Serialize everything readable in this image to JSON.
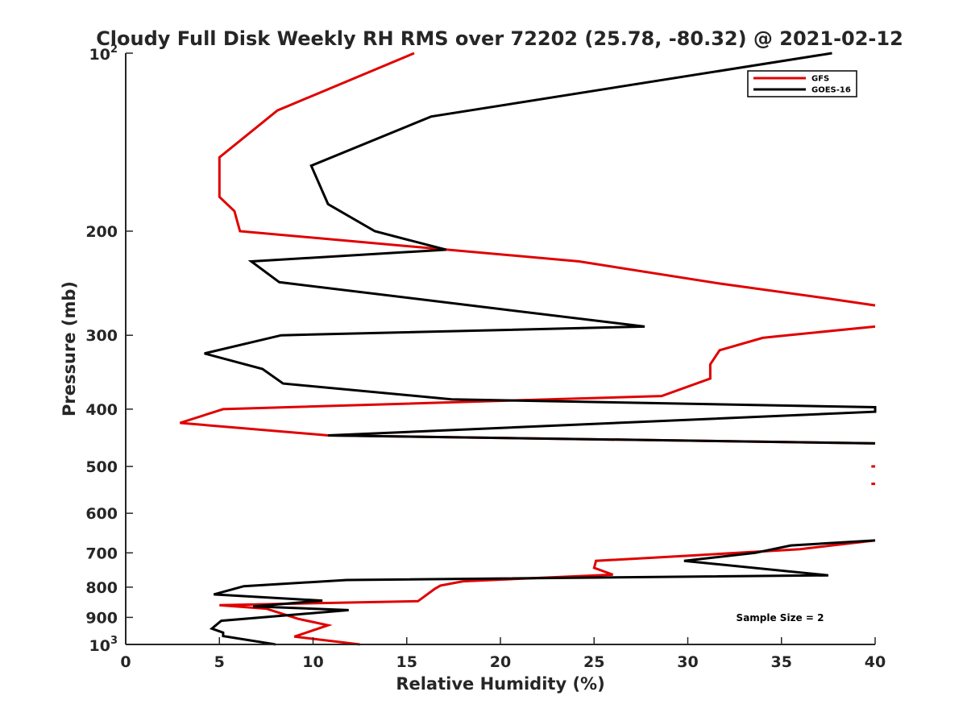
{
  "chart_data": {
    "type": "line",
    "title": "Cloudy Full Disk Weekly RH RMS over 72202 (25.78, -80.32) @ 2021-02-12",
    "xlabel": "Relative Humidity (%)",
    "ylabel": "Pressure (mb)",
    "xlim": [
      0,
      40
    ],
    "ylim": [
      100,
      1000
    ],
    "yscale": "log",
    "y_reversed": true,
    "grid": false,
    "legend_position": "top-right",
    "annotation": "Sample Size = 2",
    "x_ticks": [
      "0",
      "5",
      "10",
      "15",
      "20",
      "25",
      "30",
      "35",
      "40"
    ],
    "y_ticks": [
      {
        "value": 100,
        "base": "10",
        "exp": "2"
      },
      {
        "value": 200,
        "label": "200"
      },
      {
        "value": 300,
        "label": "300"
      },
      {
        "value": 400,
        "label": "400"
      },
      {
        "value": 500,
        "label": "500"
      },
      {
        "value": 600,
        "label": "600"
      },
      {
        "value": 700,
        "label": "700"
      },
      {
        "value": 800,
        "label": "800"
      },
      {
        "value": 900,
        "label": "900"
      },
      {
        "value": 1000,
        "base": "10",
        "exp": "3"
      }
    ],
    "series": [
      {
        "name": "GFS",
        "color": "#e00000",
        "segments": [
          [
            [
              15.4,
              100
            ],
            [
              8.1,
              125
            ],
            [
              5.0,
              150
            ],
            [
              5.0,
              175
            ],
            [
              5.8,
              185
            ],
            [
              6.1,
              200
            ],
            [
              24.2,
              225
            ],
            [
              31.6,
              245
            ],
            [
              37.5,
              260
            ],
            [
              40,
              267
            ]
          ],
          [
            [
              40,
              290
            ],
            [
              35.3,
              300
            ],
            [
              34.0,
              303
            ],
            [
              31.7,
              318
            ],
            [
              31.2,
              336
            ],
            [
              31.2,
              355
            ],
            [
              28.6,
              380
            ],
            [
              5.2,
              400
            ],
            [
              2.9,
              422
            ],
            [
              10.8,
              443
            ],
            [
              40,
              457
            ]
          ],
          [
            [
              39.8,
              500
            ],
            [
              40,
              500
            ]
          ],
          [
            [
              39.8,
              535
            ],
            [
              40,
              535
            ]
          ],
          [
            [
              40,
              667
            ],
            [
              36.0,
              690
            ],
            [
              30.0,
              708
            ],
            [
              25.1,
              722
            ],
            [
              25.0,
              742
            ],
            [
              26.0,
              762
            ],
            [
              18.0,
              782
            ],
            [
              16.8,
              795
            ],
            [
              16.5,
              805
            ],
            [
              15.6,
              845
            ],
            [
              5.0,
              858
            ],
            [
              7.5,
              870
            ],
            [
              9.2,
              905
            ],
            [
              10.8,
              928
            ],
            [
              9.0,
              970
            ],
            [
              12.5,
              1000
            ]
          ]
        ]
      },
      {
        "name": "GOES-16",
        "color": "#000000",
        "segments": [
          [
            [
              37.7,
              100
            ],
            [
              16.3,
              128
            ],
            [
              9.9,
              155
            ],
            [
              10.8,
              180
            ],
            [
              13.3,
              200
            ],
            [
              17.1,
              215
            ],
            [
              6.7,
              225
            ],
            [
              8.2,
              244
            ],
            [
              27.7,
              290
            ],
            [
              8.3,
              300
            ],
            [
              4.2,
              322
            ],
            [
              7.3,
              342
            ],
            [
              8.4,
              362
            ],
            [
              17.4,
              385
            ],
            [
              40,
              397
            ],
            [
              40,
              404
            ],
            [
              10.8,
              443
            ],
            [
              40,
              457
            ]
          ],
          [
            [
              40,
              667
            ],
            [
              35.5,
              680
            ],
            [
              33.6,
              700
            ],
            [
              29.8,
              722
            ],
            [
              37.5,
              764
            ],
            [
              11.8,
              778
            ],
            [
              6.3,
              797
            ],
            [
              4.7,
              823
            ],
            [
              10.5,
              843
            ],
            [
              6.8,
              862
            ],
            [
              11.9,
              875
            ],
            [
              5.1,
              912
            ],
            [
              4.6,
              940
            ],
            [
              5.2,
              955
            ],
            [
              5.2,
              968
            ],
            [
              8.0,
              1000
            ]
          ]
        ]
      }
    ]
  }
}
